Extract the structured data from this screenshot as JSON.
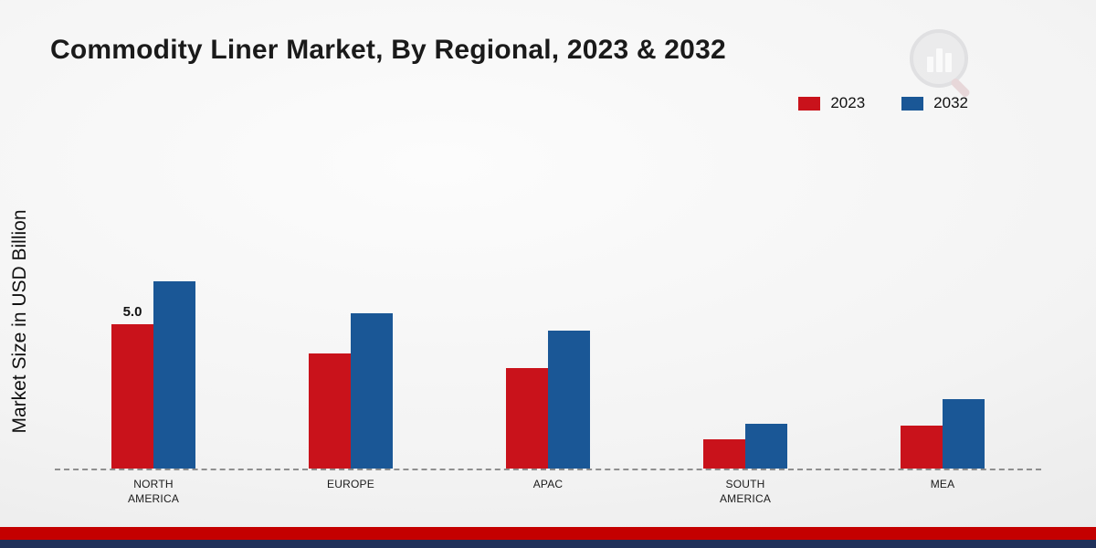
{
  "title": "Commodity Liner Market, By Regional, 2023 & 2032",
  "ylabel": "Market Size in USD Billion",
  "legend": [
    {
      "label": "2023",
      "color": "#C9121B"
    },
    {
      "label": "2032",
      "color": "#1A5796"
    }
  ],
  "footer": {
    "red_band_color": "#C40000",
    "navy_band_color": "#20315B"
  },
  "chart_data": {
    "type": "bar",
    "title": "Commodity Liner Market, By Regional, 2023 & 2032",
    "xlabel": "",
    "ylabel": "Market Size in USD Billion",
    "categories": [
      "NORTH AMERICA",
      "EUROPE",
      "APAC",
      "SOUTH AMERICA",
      "MEA"
    ],
    "series": [
      {
        "name": "2023",
        "color": "#C9121B",
        "values": [
          5.0,
          4.0,
          3.5,
          1.0,
          1.5
        ]
      },
      {
        "name": "2032",
        "color": "#1A5796",
        "values": [
          6.5,
          5.4,
          4.8,
          1.55,
          2.4
        ]
      }
    ],
    "annotations": [
      {
        "category_index": 0,
        "series_index": 0,
        "text": "5.0"
      }
    ],
    "ylim": [
      0,
      7
    ],
    "grid": false,
    "baseline_style": "dashed",
    "legend_position": "top-right"
  }
}
